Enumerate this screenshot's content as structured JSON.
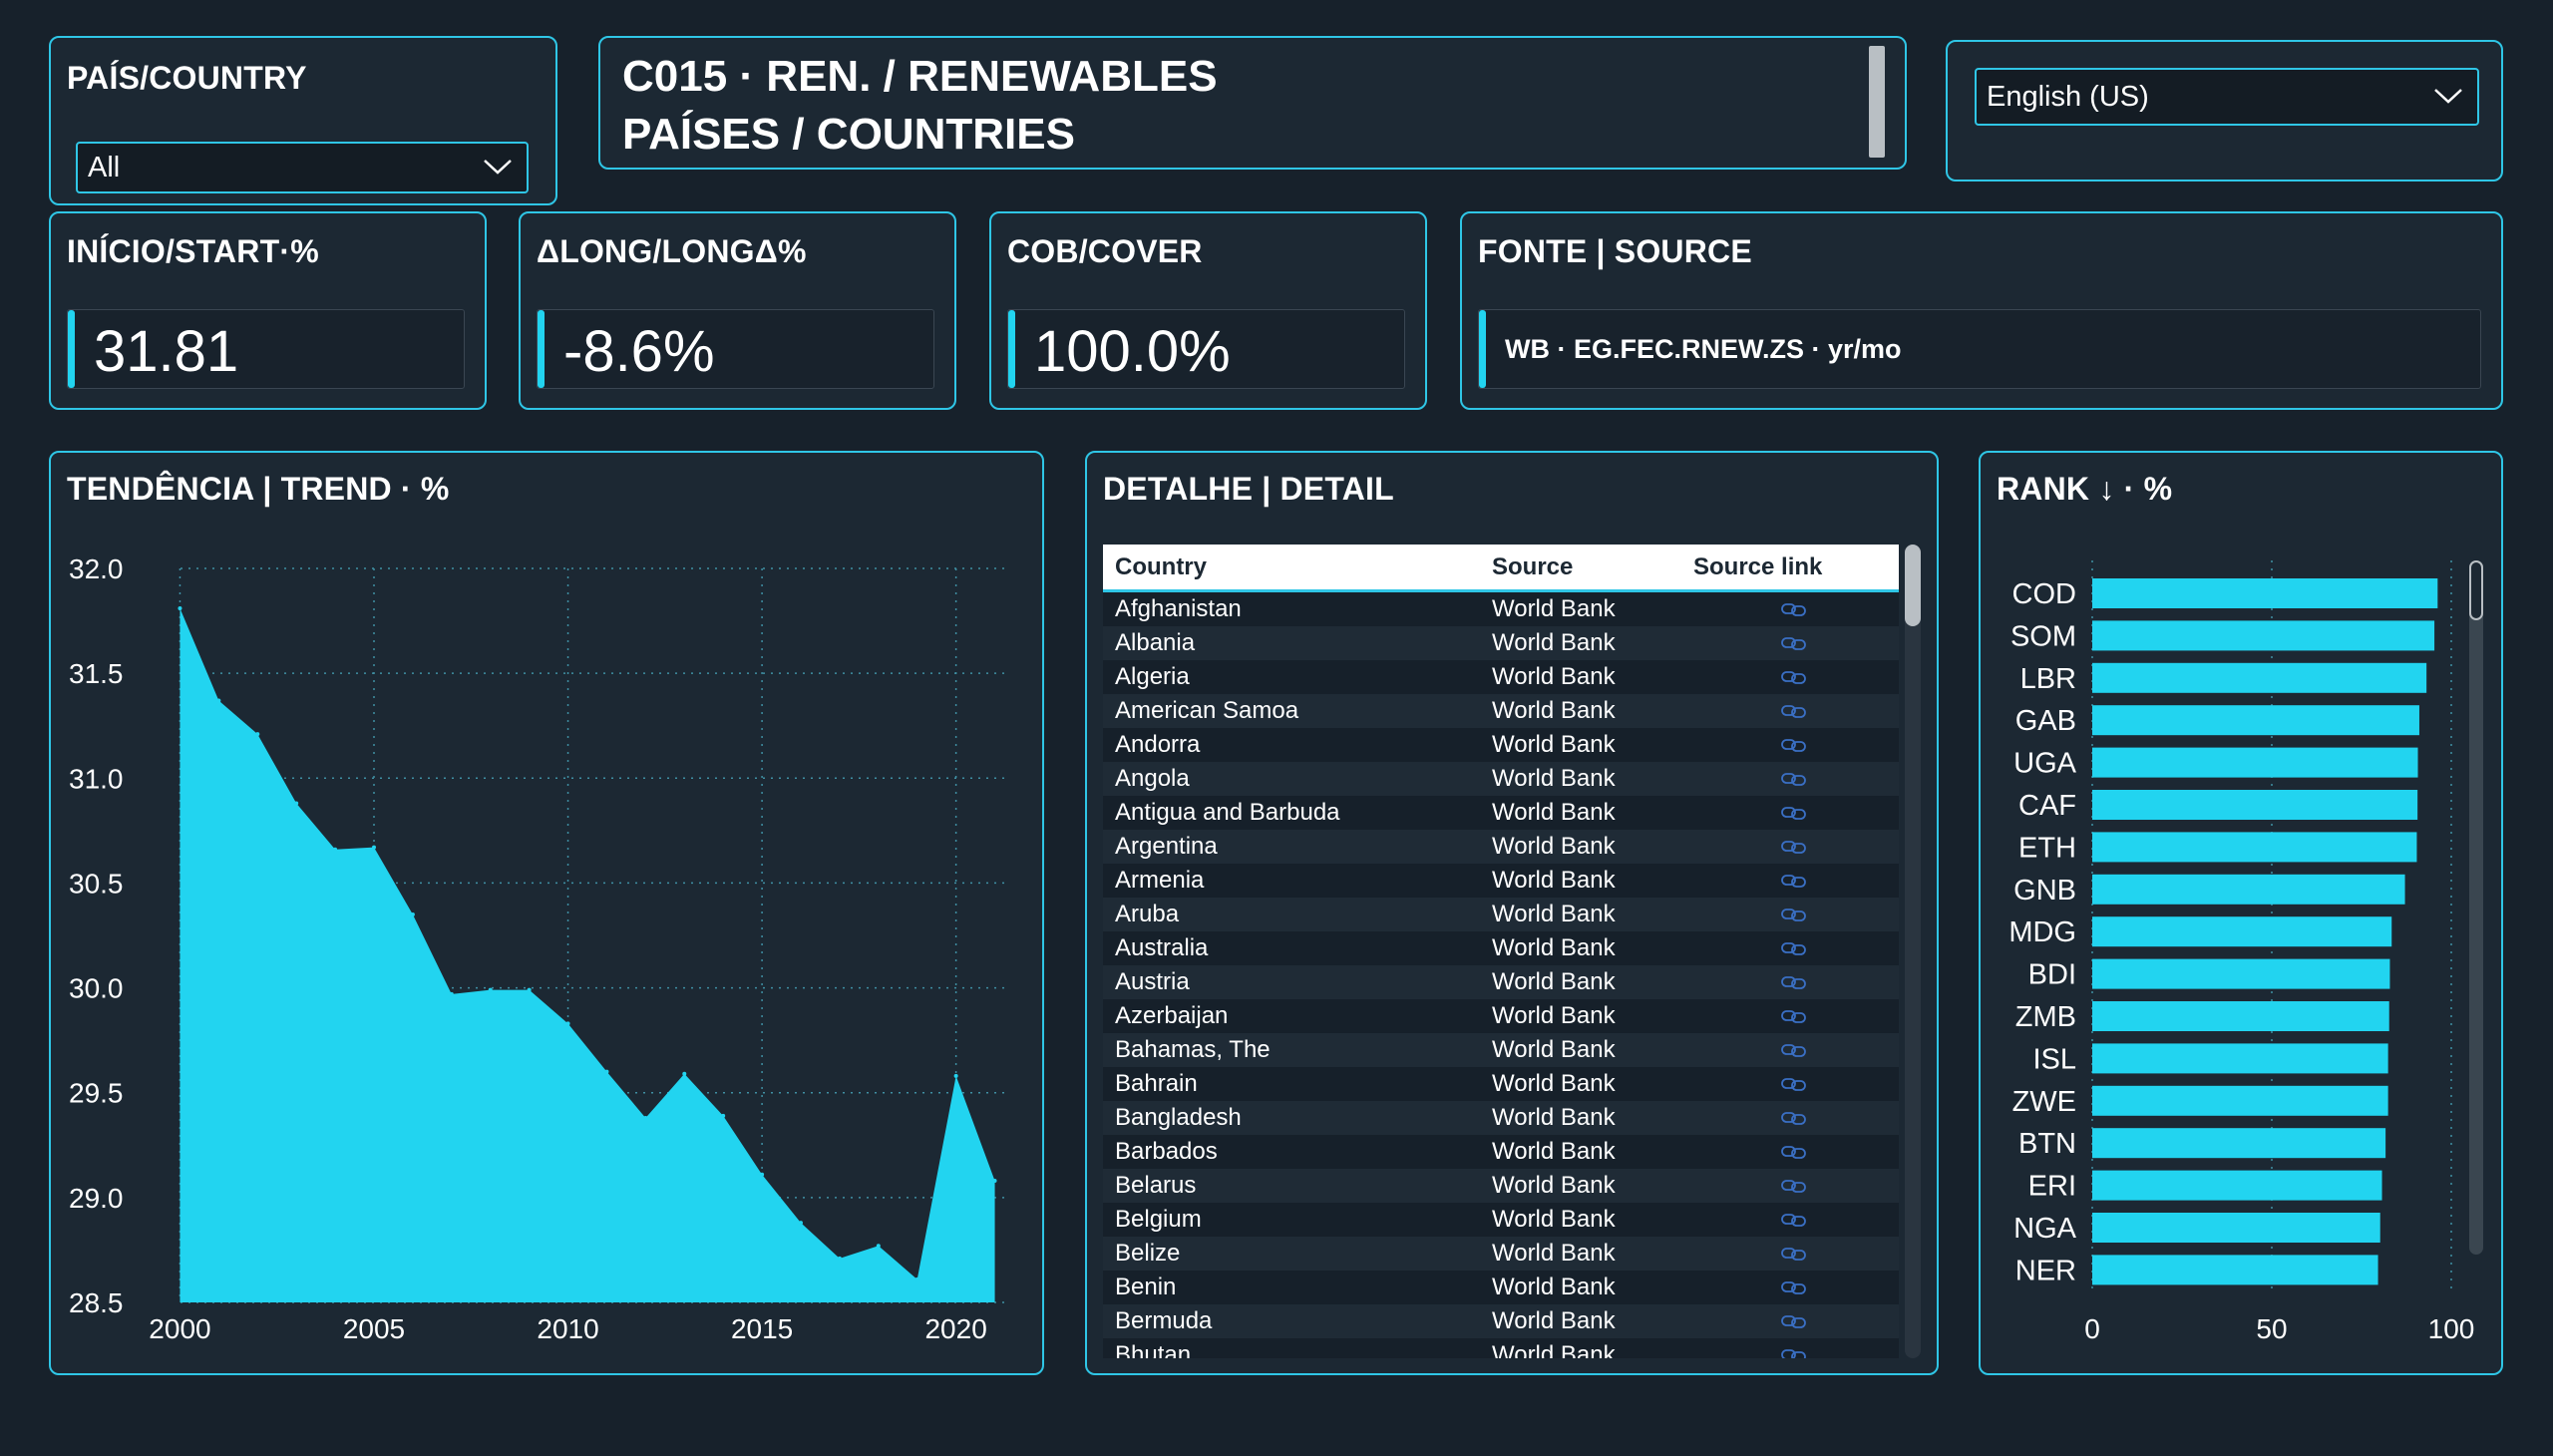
{
  "filters": {
    "country": {
      "label": "PAÍS/COUNTRY",
      "value": "All"
    },
    "language": {
      "value": "English (US)"
    }
  },
  "header": {
    "line1": "C015 · REN. / RENEWABLES",
    "line2": "PAÍSES / COUNTRIES"
  },
  "kpis": {
    "start": {
      "label": "INÍCIO/START·%",
      "value": "31.81"
    },
    "delta": {
      "label": "ΔLONG/LONGΔ%",
      "value": "-8.6%"
    },
    "cover": {
      "label": "COB/COVER",
      "value": "100.0%"
    },
    "source": {
      "label": "FONTE | SOURCE",
      "value": "WB · EG.FEC.RNEW.ZS · yr/mo"
    }
  },
  "trend": {
    "title": "TENDÊNCIA | TREND · %"
  },
  "detail": {
    "title": "DETALHE | DETAIL",
    "columns": [
      "Country",
      "Source",
      "Source link"
    ],
    "rows": [
      {
        "country": "Afghanistan",
        "source": "World Bank"
      },
      {
        "country": "Albania",
        "source": "World Bank"
      },
      {
        "country": "Algeria",
        "source": "World Bank"
      },
      {
        "country": "American Samoa",
        "source": "World Bank"
      },
      {
        "country": "Andorra",
        "source": "World Bank"
      },
      {
        "country": "Angola",
        "source": "World Bank"
      },
      {
        "country": "Antigua and Barbuda",
        "source": "World Bank"
      },
      {
        "country": "Argentina",
        "source": "World Bank"
      },
      {
        "country": "Armenia",
        "source": "World Bank"
      },
      {
        "country": "Aruba",
        "source": "World Bank"
      },
      {
        "country": "Australia",
        "source": "World Bank"
      },
      {
        "country": "Austria",
        "source": "World Bank"
      },
      {
        "country": "Azerbaijan",
        "source": "World Bank"
      },
      {
        "country": "Bahamas, The",
        "source": "World Bank"
      },
      {
        "country": "Bahrain",
        "source": "World Bank"
      },
      {
        "country": "Bangladesh",
        "source": "World Bank"
      },
      {
        "country": "Barbados",
        "source": "World Bank"
      },
      {
        "country": "Belarus",
        "source": "World Bank"
      },
      {
        "country": "Belgium",
        "source": "World Bank"
      },
      {
        "country": "Belize",
        "source": "World Bank"
      },
      {
        "country": "Benin",
        "source": "World Bank"
      },
      {
        "country": "Bermuda",
        "source": "World Bank"
      },
      {
        "country": "Bhutan",
        "source": "World Bank"
      }
    ],
    "link_icon": "link-icon"
  },
  "rank": {
    "title": "RANK ↓ · %"
  },
  "colors": {
    "accent": "#22d4f0",
    "border": "#2fc6e6",
    "background": "#17212b",
    "panel": "#1c2833"
  },
  "chart_data": [
    {
      "type": "area",
      "title": "TENDÊNCIA | TREND · %",
      "x": [
        2000,
        2001,
        2002,
        2003,
        2004,
        2005,
        2006,
        2007,
        2008,
        2009,
        2010,
        2011,
        2012,
        2013,
        2014,
        2015,
        2016,
        2017,
        2018,
        2019,
        2020,
        2021
      ],
      "values": [
        31.81,
        31.37,
        31.21,
        30.88,
        30.66,
        30.67,
        30.35,
        29.97,
        29.99,
        29.99,
        29.83,
        29.6,
        29.38,
        29.59,
        29.39,
        29.11,
        28.88,
        28.71,
        28.77,
        28.61,
        29.58,
        29.08
      ],
      "ylim": [
        28.5,
        32.0
      ],
      "yticks": [
        28.5,
        29.0,
        29.5,
        30.0,
        30.5,
        31.0,
        31.5,
        32.0
      ],
      "xticks": [
        2000,
        2005,
        2010,
        2015,
        2020
      ],
      "grid": true
    },
    {
      "type": "bar",
      "orientation": "horizontal",
      "title": "RANK ↓ · %",
      "categories": [
        "COD",
        "SOM",
        "LBR",
        "GAB",
        "UGA",
        "CAF",
        "ETH",
        "GNB",
        "MDG",
        "BDI",
        "ZMB",
        "ISL",
        "ZWE",
        "BTN",
        "ERI",
        "NGA",
        "NER"
      ],
      "values": [
        96.2,
        95.3,
        93.1,
        91.1,
        90.7,
        90.6,
        90.4,
        87.1,
        83.4,
        82.9,
        82.7,
        82.4,
        82.4,
        81.7,
        80.7,
        80.2,
        79.6
      ],
      "xlim": [
        0,
        100
      ],
      "xticks": [
        0,
        50,
        100
      ],
      "grid": true
    }
  ]
}
